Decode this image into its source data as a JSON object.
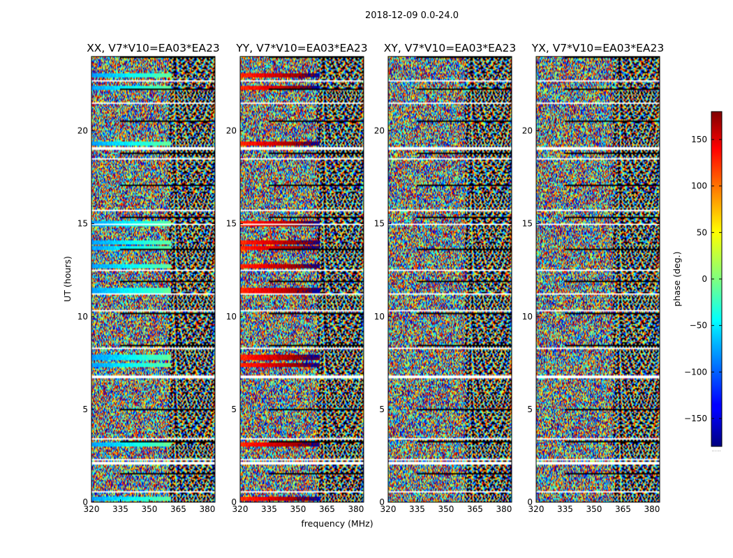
{
  "figure": {
    "suptitle": "2018-12-09 0.0-24.0"
  },
  "chart_data": {
    "type": "heatmap",
    "xlabel": "frequency (MHz)",
    "ylabel": "UT (hours)",
    "x_range": [
      320,
      384
    ],
    "y_range": [
      0,
      24
    ],
    "x_ticks": [
      "320",
      "335",
      "350",
      "365",
      "380"
    ],
    "x_tick_values": [
      320,
      335,
      350,
      365,
      380
    ],
    "y_ticks": [
      "0",
      "5",
      "10",
      "15",
      "20"
    ],
    "y_tick_values": [
      0,
      5,
      10,
      15,
      20
    ],
    "panels": [
      {
        "name": "XX",
        "title": "XX, V7*V10=EA03*EA23",
        "coherent": true,
        "base_phase": -80
      },
      {
        "name": "YY",
        "title": "YY, V7*V10=EA03*EA23",
        "coherent": true,
        "base_phase": 120
      },
      {
        "name": "XY",
        "title": "XY, V7*V10=EA03*EA23",
        "coherent": false,
        "base_phase": 0
      },
      {
        "name": "YX",
        "title": "YX, V7*V10=EA03*EA23",
        "coherent": false,
        "base_phase": 0
      }
    ],
    "coherent_hours": [
      0.2,
      3.1,
      7.4,
      7.8,
      11.4,
      12.7,
      13.7,
      14.0,
      15.0,
      19.3,
      22.3,
      23.0
    ],
    "colorbar": {
      "label": "phase (deg.)",
      "range": [
        -180,
        180
      ],
      "ticks": [
        "150",
        "100",
        "50",
        "0",
        "−50",
        "−100",
        "−150"
      ],
      "tick_values": [
        150,
        100,
        50,
        0,
        -50,
        -100,
        -150
      ],
      "colormap": "jet",
      "bottom_note": "......"
    }
  }
}
